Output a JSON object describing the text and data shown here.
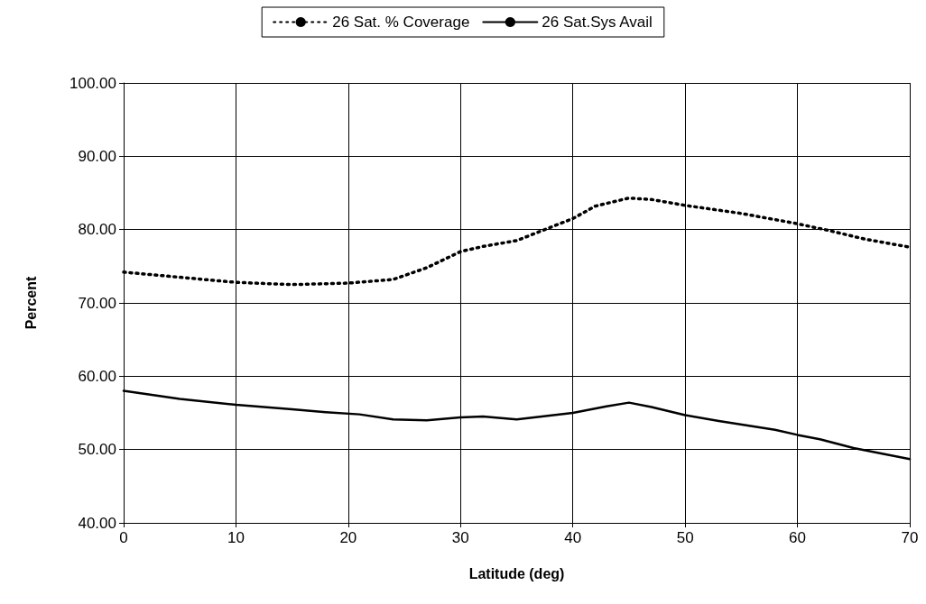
{
  "chart_data": {
    "type": "line",
    "xlabel": "Latitude (deg)",
    "ylabel": "Percent",
    "xlim": [
      0,
      70
    ],
    "xticks": [
      0,
      10,
      20,
      30,
      40,
      50,
      60,
      70
    ],
    "ylim": [
      40,
      100
    ],
    "yticks": [
      {
        "value": 40,
        "label": "40.00"
      },
      {
        "value": 50,
        "label": "50.00"
      },
      {
        "value": 60,
        "label": "60.00"
      },
      {
        "value": 70,
        "label": "70.00"
      },
      {
        "value": 80,
        "label": "80.00"
      },
      {
        "value": 90,
        "label": "90.00"
      },
      {
        "value": 100,
        "label": "100.00"
      }
    ],
    "grid": true,
    "legend": "top",
    "marker": "none",
    "series": [
      {
        "name": "26 Sat. % Coverage",
        "color": "#000000",
        "line_style": "dotted",
        "x": [
          0,
          10,
          15,
          20,
          24,
          27,
          30,
          32,
          35,
          38,
          40,
          42,
          45,
          47,
          50,
          55,
          60,
          63,
          66,
          70
        ],
        "values": [
          74.2,
          72.8,
          72.5,
          72.7,
          73.2,
          74.8,
          77.0,
          77.7,
          78.5,
          80.3,
          81.5,
          83.2,
          84.3,
          84.1,
          83.3,
          82.2,
          80.8,
          79.8,
          78.7,
          77.6
        ]
      },
      {
        "name": "26 Sat.Sys Avail",
        "color": "#000000",
        "line_style": "solid",
        "x": [
          0,
          5,
          10,
          15,
          18,
          21,
          24,
          27,
          30,
          32,
          35,
          40,
          43,
          45,
          47,
          50,
          53,
          58,
          60,
          62,
          65,
          70
        ],
        "values": [
          58.0,
          56.9,
          56.1,
          55.5,
          55.1,
          54.8,
          54.1,
          54.0,
          54.4,
          54.5,
          54.1,
          55.0,
          55.9,
          56.4,
          55.8,
          54.7,
          53.9,
          52.7,
          52.0,
          51.4,
          50.2,
          48.7
        ]
      }
    ]
  }
}
